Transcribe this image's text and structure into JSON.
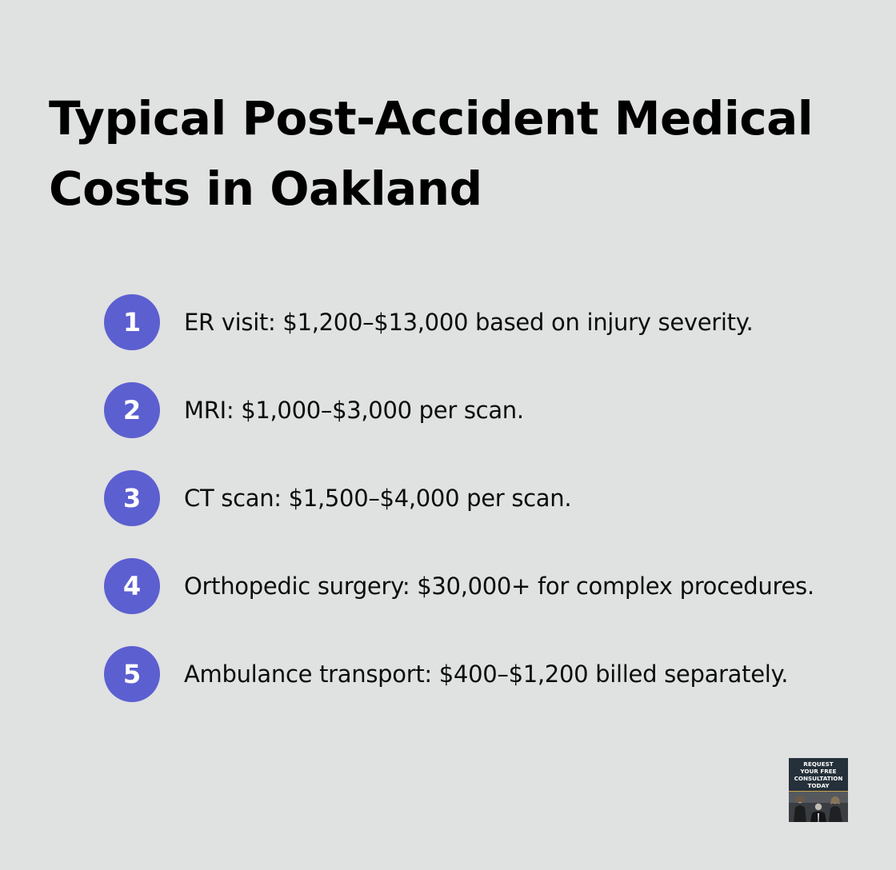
{
  "title": "Typical Post-Accident Medical Costs in Oakland",
  "items": [
    {
      "number": "1",
      "text": "ER visit: $1,200–$13,000 based on injury severity."
    },
    {
      "number": "2",
      "text": "MRI: $1,000–$3,000 per scan."
    },
    {
      "number": "3",
      "text": "CT scan: $1,500–$4,000 per scan."
    },
    {
      "number": "4",
      "text": "Orthopedic surgery: $30,000+ for complex procedures."
    },
    {
      "number": "5",
      "text": "Ambulance transport: $400–$1,200 billed separately."
    }
  ],
  "badge": {
    "text": "REQUEST\nYOUR FREE\nCONSULTATION\nTODAY"
  },
  "colors": {
    "background": "#e0e1e1",
    "accent": "#5c5fd0",
    "badge_background": "#24303a"
  }
}
